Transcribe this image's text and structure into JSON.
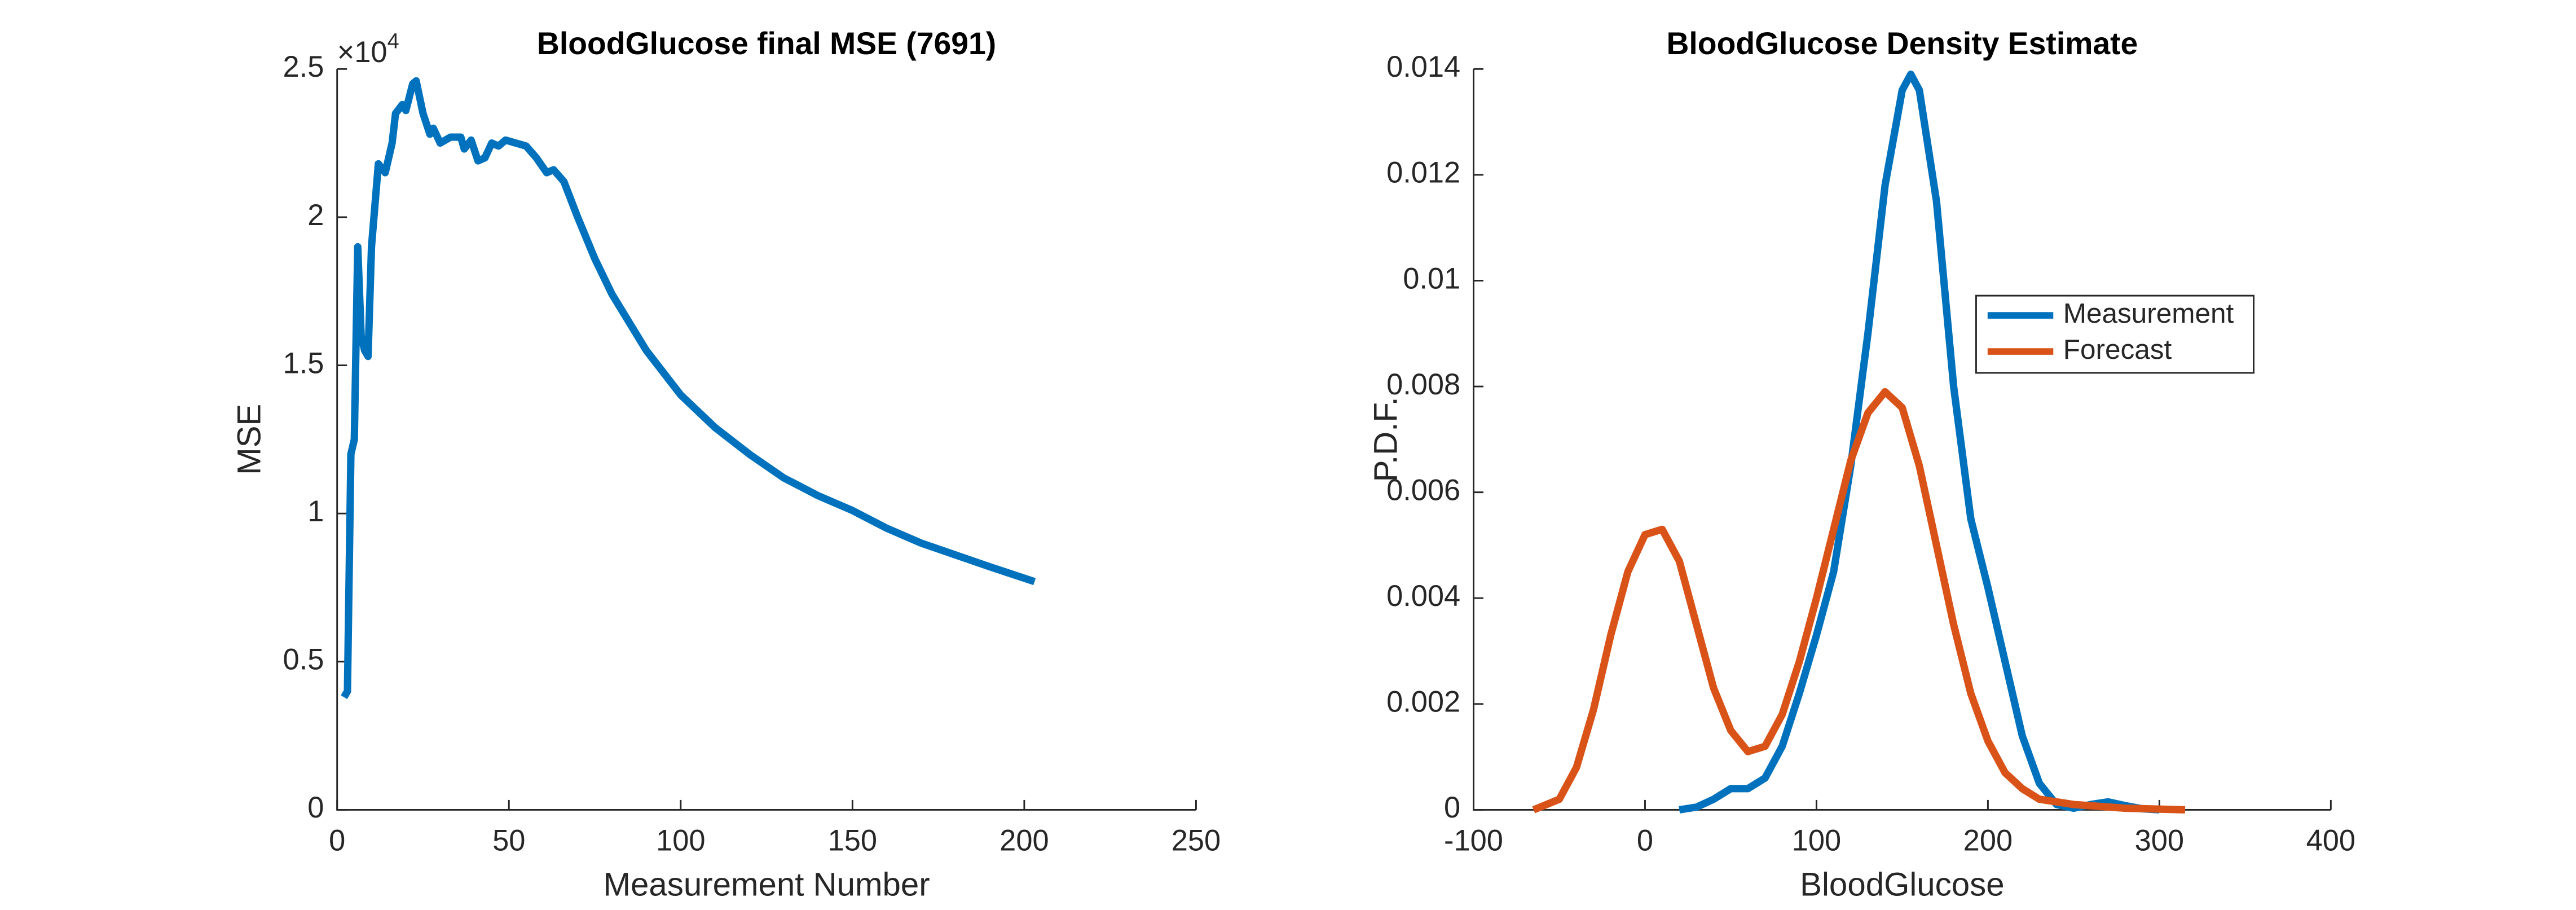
{
  "chart_data": [
    {
      "type": "line",
      "title": "BloodGlucose final MSE (7691)",
      "x_label": "Measurement Number",
      "y_label": "MSE",
      "y_multiplier_base": "×10",
      "y_multiplier_exponent": "4",
      "color": "#0072bd",
      "x": [
        2,
        3,
        4,
        5,
        6,
        7,
        8,
        9,
        10,
        12,
        14,
        16,
        17,
        19,
        20,
        22,
        23,
        25,
        27,
        28,
        30,
        33,
        36,
        37,
        39,
        41,
        43,
        45,
        47,
        49,
        52,
        55,
        58,
        61,
        63,
        66,
        70,
        75,
        80,
        90,
        100,
        110,
        120,
        130,
        135,
        140,
        150,
        160,
        170,
        180,
        190,
        203
      ],
      "values": [
        3800,
        4000,
        12000,
        12500,
        19000,
        16000,
        15500,
        15300,
        19000,
        21800,
        21500,
        22500,
        23500,
        23800,
        23600,
        24500,
        24600,
        23500,
        22800,
        23000,
        22500,
        22700,
        22700,
        22300,
        22600,
        21900,
        22000,
        22500,
        22400,
        22600,
        22500,
        22400,
        22000,
        21500,
        21600,
        21200,
        20000,
        18600,
        17400,
        15500,
        14000,
        12900,
        12000,
        11200,
        10900,
        10600,
        10100,
        9500,
        9000,
        8600,
        8200,
        7700
      ],
      "xlim": [
        0,
        250
      ],
      "xticks": [
        0,
        50,
        100,
        150,
        200,
        250
      ],
      "ylim": [
        0,
        25000
      ],
      "yticks": [
        {
          "value": 0,
          "label": "0"
        },
        {
          "value": 5000,
          "label": "0.5"
        },
        {
          "value": 10000,
          "label": "1"
        },
        {
          "value": 15000,
          "label": "1.5"
        },
        {
          "value": 20000,
          "label": "2"
        },
        {
          "value": 25000,
          "label": "2.5"
        }
      ]
    },
    {
      "type": "line",
      "title": "BloodGlucose Density Estimate",
      "x_label": "BloodGlucose",
      "y_label": "P.D.F.",
      "legend": "northeast",
      "series": [
        {
          "name": "Measurement",
          "color": "#0072bd",
          "x": [
            20,
            30,
            40,
            50,
            60,
            70,
            80,
            90,
            100,
            110,
            120,
            130,
            140,
            150,
            155,
            160,
            170,
            180,
            190,
            200,
            210,
            220,
            230,
            240,
            250,
            260,
            270,
            280,
            290,
            300
          ],
          "values": [
            0,
            5e-05,
            0.0002,
            0.0004,
            0.0004,
            0.0006,
            0.0012,
            0.0022,
            0.0033,
            0.0045,
            0.0065,
            0.009,
            0.0118,
            0.0136,
            0.0139,
            0.0136,
            0.0115,
            0.008,
            0.0055,
            0.0042,
            0.0028,
            0.0014,
            0.0005,
            0.0001,
            3e-05,
            0.0001,
            0.00015,
            8e-05,
            2e-05,
            0
          ]
        },
        {
          "name": "Forecast",
          "color": "#d95319",
          "x": [
            -65,
            -50,
            -40,
            -30,
            -20,
            -10,
            0,
            10,
            20,
            30,
            40,
            50,
            60,
            70,
            80,
            90,
            100,
            110,
            120,
            130,
            140,
            150,
            160,
            170,
            180,
            190,
            200,
            210,
            220,
            230,
            250,
            280,
            315
          ],
          "values": [
            0,
            0.0002,
            0.0008,
            0.0019,
            0.0033,
            0.0045,
            0.0052,
            0.0053,
            0.0047,
            0.0035,
            0.0023,
            0.0015,
            0.0011,
            0.0012,
            0.0018,
            0.0028,
            0.004,
            0.0053,
            0.0066,
            0.0075,
            0.0079,
            0.0076,
            0.0065,
            0.005,
            0.0035,
            0.0022,
            0.0013,
            0.0007,
            0.0004,
            0.0002,
            0.0001,
            3e-05,
            0
          ]
        }
      ],
      "xlim": [
        -100,
        400
      ],
      "xticks": [
        -100,
        0,
        100,
        200,
        300,
        400
      ],
      "ylim": [
        0,
        0.014
      ],
      "yticks": [
        0,
        0.002,
        0.004,
        0.006,
        0.008,
        0.01,
        0.012,
        0.014
      ]
    }
  ]
}
